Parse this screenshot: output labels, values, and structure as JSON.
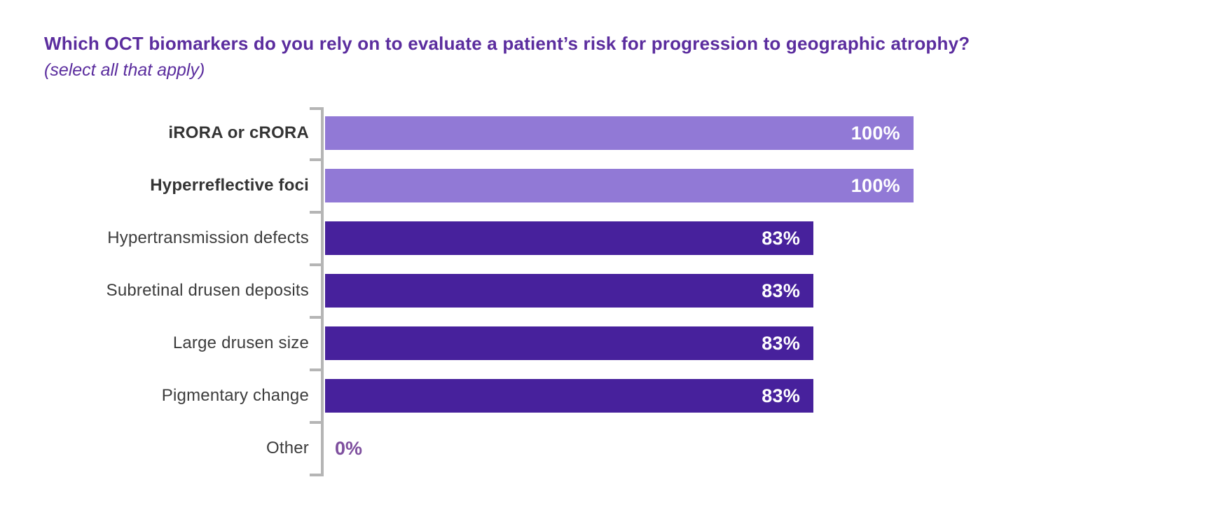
{
  "title": "Which OCT biomarkers do you rely on to evaluate a patient’s risk for progression to geographic atrophy?",
  "subtitle": "(select all that apply)",
  "chart_data": {
    "type": "bar",
    "orientation": "horizontal",
    "title": "Which OCT biomarkers do you rely on to evaluate a patient’s risk for progression to geographic atrophy?",
    "subtitle": "(select all that apply)",
    "categories": [
      "iRORA or cRORA",
      "Hyperreflective foci",
      "Hypertransmission defects",
      "Subretinal drusen deposits",
      "Large drusen size",
      "Pigmentary change",
      "Other"
    ],
    "values": [
      100,
      100,
      83,
      83,
      83,
      83,
      0
    ],
    "value_labels": [
      "100%",
      "100%",
      "83%",
      "83%",
      "83%",
      "83%",
      "0%"
    ],
    "bold_categories": [
      true,
      true,
      false,
      false,
      false,
      false,
      false
    ],
    "xlim": [
      0,
      100
    ],
    "grid": false,
    "legend": "none",
    "value_label_position": "inside-end",
    "colors": {
      "bar_high": "#9179d6",
      "bar_mid": "#47219c",
      "value_inside": "#ffffff",
      "value_zero": "#7e4f9e",
      "axis": "#b5b5b5",
      "label": "#3c3c3c",
      "title": "#5b2d9e"
    }
  }
}
